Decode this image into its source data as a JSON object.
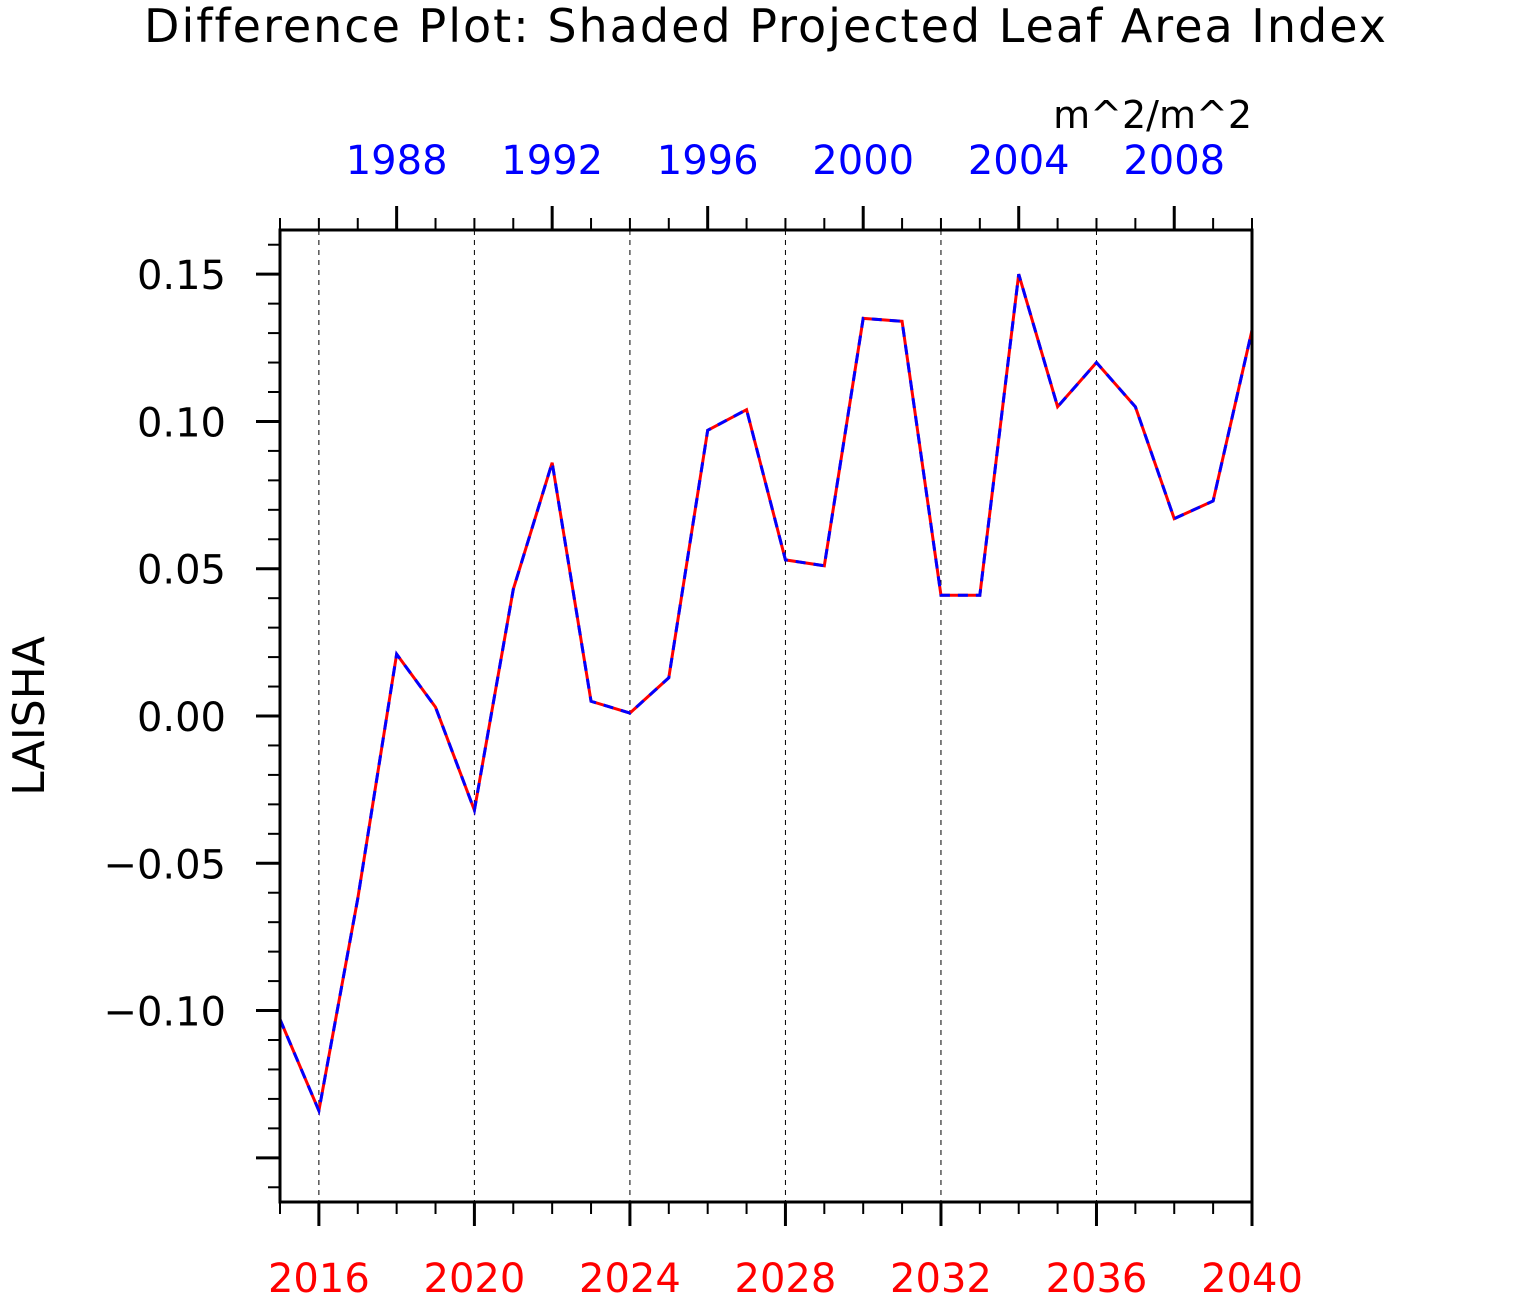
{
  "chart_data": {
    "type": "line",
    "title": "Difference Plot: Shaded Projected Leaf Area Index",
    "units": "m^2/m^2",
    "ylabel": "LAISHA",
    "ylim": [
      -0.165,
      0.165
    ],
    "y_ticks": [
      -0.1,
      -0.05,
      0.0,
      0.05,
      0.1,
      0.15
    ],
    "y_tick_labels": [
      "−0.10",
      "−0.05",
      "0.00",
      "0.05",
      "0.10",
      "0.15"
    ],
    "grid": "vertical dashed at bottom major ticks",
    "bottom_axis": {
      "color": "#ff0000",
      "range": [
        2015,
        2040
      ],
      "ticks": [
        2016,
        2020,
        2024,
        2028,
        2032,
        2036,
        2040
      ],
      "tick_labels": [
        "2016",
        "2020",
        "2024",
        "2028",
        "2032",
        "2036",
        "2040"
      ]
    },
    "top_axis": {
      "color": "#0000ff",
      "range": [
        1985,
        2010
      ],
      "ticks": [
        1988,
        1992,
        1996,
        2000,
        2004,
        2008
      ],
      "tick_labels": [
        "1988",
        "1992",
        "1996",
        "2000",
        "2004",
        "2008"
      ]
    },
    "series": [
      {
        "color": "#ff0000",
        "style": "solid",
        "x": [
          2015,
          2016,
          2017,
          2018,
          2019,
          2020,
          2021,
          2022,
          2023,
          2024,
          2025,
          2026,
          2027,
          2028,
          2029,
          2030,
          2031,
          2032,
          2033,
          2034,
          2035,
          2036,
          2037,
          2038,
          2039,
          2040
        ],
        "values": [
          -0.103,
          -0.134,
          -0.062,
          0.021,
          0.003,
          -0.032,
          0.043,
          0.086,
          0.005,
          0.001,
          0.013,
          0.097,
          0.104,
          0.053,
          0.051,
          0.135,
          0.134,
          0.041,
          0.041,
          0.15,
          0.105,
          0.12,
          0.105,
          0.067,
          0.073,
          0.131
        ]
      },
      {
        "color": "#0000ff",
        "style": "dashed",
        "x": [
          2015,
          2016,
          2017,
          2018,
          2019,
          2020,
          2021,
          2022,
          2023,
          2024,
          2025,
          2026,
          2027,
          2028,
          2029,
          2030,
          2031,
          2032,
          2033,
          2034,
          2035,
          2036,
          2037,
          2038,
          2039,
          2040
        ],
        "values": [
          -0.103,
          -0.134,
          -0.062,
          0.021,
          0.003,
          -0.032,
          0.043,
          0.086,
          0.005,
          0.001,
          0.013,
          0.097,
          0.104,
          0.053,
          0.051,
          0.135,
          0.134,
          0.041,
          0.041,
          0.15,
          0.105,
          0.12,
          0.105,
          0.067,
          0.073,
          0.131
        ]
      }
    ]
  }
}
